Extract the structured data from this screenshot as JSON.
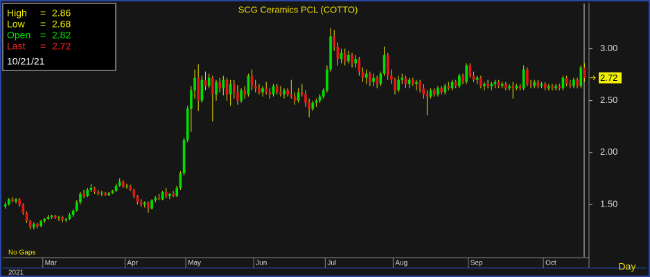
{
  "chart_data": {
    "type": "candlestick",
    "title": "SCG Ceramics PCL (COTTO)",
    "info": {
      "rows": [
        {
          "label": "High",
          "value": 2.86,
          "color": "#f0f000"
        },
        {
          "label": "Low",
          "value": 2.68,
          "color": "#f0f000"
        },
        {
          "label": "Open",
          "value": 2.82,
          "color": "#00e000"
        },
        {
          "label": "Last",
          "value": 2.72,
          "color": "#ff2020"
        }
      ],
      "date": "10/21/21"
    },
    "last_price": 2.72,
    "note": "No Gaps",
    "year_label": "2021",
    "x_label": "Day",
    "up_color": "#00e000",
    "down_color": "#e01818",
    "wick_color": "#e8e000",
    "ylim": [
      1.0,
      3.43
    ],
    "yticks": [
      {
        "value": 1.5,
        "label": "1.50"
      },
      {
        "value": 2.0,
        "label": "2.00"
      },
      {
        "value": 2.5,
        "label": "2.50"
      },
      {
        "value": 3.0,
        "label": "3.00"
      }
    ],
    "categories": [
      null,
      null,
      null,
      null,
      null,
      null,
      null,
      null,
      null,
      null,
      null,
      "Mar",
      null,
      null,
      null,
      null,
      null,
      null,
      null,
      null,
      null,
      null,
      null,
      null,
      null,
      null,
      null,
      null,
      null,
      null,
      null,
      null,
      null,
      null,
      "Apr",
      null,
      null,
      null,
      null,
      null,
      null,
      null,
      null,
      null,
      null,
      null,
      null,
      null,
      null,
      null,
      null,
      "May",
      null,
      null,
      null,
      null,
      null,
      null,
      null,
      null,
      null,
      null,
      null,
      null,
      null,
      null,
      null,
      null,
      null,
      null,
      "Jun",
      null,
      null,
      null,
      null,
      null,
      null,
      null,
      null,
      null,
      null,
      null,
      null,
      null,
      null,
      null,
      null,
      null,
      null,
      null,
      "Jul",
      null,
      null,
      null,
      null,
      null,
      null,
      null,
      null,
      null,
      null,
      null,
      null,
      null,
      null,
      null,
      null,
      null,
      null,
      "Aug",
      null,
      null,
      null,
      null,
      null,
      null,
      null,
      null,
      null,
      null,
      null,
      null,
      null,
      null,
      null,
      null,
      null,
      null,
      null,
      null,
      "Sep",
      null,
      null,
      null,
      null,
      null,
      null,
      null,
      null,
      null,
      null,
      null,
      null,
      null,
      null,
      null,
      null,
      null,
      null,
      null,
      null,
      "Oct",
      null,
      null,
      null,
      null,
      null,
      null,
      null,
      null,
      null,
      null,
      null
    ],
    "ohlc": [
      [
        1.48,
        1.52,
        1.46,
        1.5
      ],
      [
        1.5,
        1.56,
        1.49,
        1.55
      ],
      [
        1.55,
        1.57,
        1.52,
        1.53
      ],
      [
        1.53,
        1.56,
        1.51,
        1.55
      ],
      [
        1.55,
        1.56,
        1.48,
        1.5
      ],
      [
        1.5,
        1.51,
        1.4,
        1.42
      ],
      [
        1.42,
        1.43,
        1.32,
        1.34
      ],
      [
        1.34,
        1.35,
        1.26,
        1.28
      ],
      [
        1.28,
        1.33,
        1.26,
        1.31
      ],
      [
        1.31,
        1.32,
        1.27,
        1.29
      ],
      [
        1.29,
        1.35,
        1.28,
        1.34
      ],
      [
        1.34,
        1.37,
        1.32,
        1.36
      ],
      [
        1.36,
        1.4,
        1.35,
        1.38
      ],
      [
        1.38,
        1.4,
        1.36,
        1.39
      ],
      [
        1.39,
        1.4,
        1.36,
        1.37
      ],
      [
        1.37,
        1.39,
        1.34,
        1.38
      ],
      [
        1.38,
        1.39,
        1.33,
        1.35
      ],
      [
        1.35,
        1.37,
        1.33,
        1.36
      ],
      [
        1.36,
        1.42,
        1.35,
        1.4
      ],
      [
        1.4,
        1.45,
        1.38,
        1.44
      ],
      [
        1.44,
        1.54,
        1.43,
        1.52
      ],
      [
        1.52,
        1.62,
        1.5,
        1.6
      ],
      [
        1.6,
        1.64,
        1.56,
        1.58
      ],
      [
        1.58,
        1.66,
        1.57,
        1.64
      ],
      [
        1.64,
        1.7,
        1.62,
        1.66
      ],
      [
        1.66,
        1.67,
        1.6,
        1.62
      ],
      [
        1.62,
        1.64,
        1.59,
        1.6
      ],
      [
        1.6,
        1.63,
        1.58,
        1.61
      ],
      [
        1.61,
        1.62,
        1.58,
        1.59
      ],
      [
        1.59,
        1.62,
        1.58,
        1.61
      ],
      [
        1.61,
        1.64,
        1.6,
        1.63
      ],
      [
        1.63,
        1.7,
        1.62,
        1.68
      ],
      [
        1.68,
        1.75,
        1.67,
        1.72
      ],
      [
        1.72,
        1.73,
        1.66,
        1.67
      ],
      [
        1.67,
        1.7,
        1.65,
        1.68
      ],
      [
        1.68,
        1.69,
        1.63,
        1.64
      ],
      [
        1.64,
        1.65,
        1.56,
        1.58
      ],
      [
        1.58,
        1.59,
        1.5,
        1.52
      ],
      [
        1.52,
        1.55,
        1.48,
        1.5
      ],
      [
        1.5,
        1.53,
        1.47,
        1.52
      ],
      [
        1.52,
        1.53,
        1.42,
        1.46
      ],
      [
        1.46,
        1.55,
        1.45,
        1.54
      ],
      [
        1.54,
        1.58,
        1.52,
        1.56
      ],
      [
        1.56,
        1.6,
        1.54,
        1.55
      ],
      [
        1.55,
        1.63,
        1.54,
        1.62
      ],
      [
        1.62,
        1.66,
        1.56,
        1.58
      ],
      [
        1.58,
        1.61,
        1.55,
        1.6
      ],
      [
        1.6,
        1.63,
        1.57,
        1.58
      ],
      [
        1.58,
        1.68,
        1.57,
        1.66
      ],
      [
        1.66,
        1.82,
        1.64,
        1.8
      ],
      [
        1.8,
        2.14,
        1.78,
        2.12
      ],
      [
        2.12,
        2.45,
        2.1,
        2.42
      ],
      [
        2.42,
        2.64,
        2.2,
        2.6
      ],
      [
        2.6,
        2.8,
        2.52,
        2.72
      ],
      [
        2.72,
        2.85,
        2.4,
        2.5
      ],
      [
        2.5,
        2.74,
        2.48,
        2.7
      ],
      [
        2.7,
        2.78,
        2.6,
        2.64
      ],
      [
        2.64,
        2.76,
        2.62,
        2.72
      ],
      [
        2.72,
        2.74,
        2.3,
        2.56
      ],
      [
        2.56,
        2.7,
        2.5,
        2.68
      ],
      [
        2.68,
        2.72,
        2.58,
        2.62
      ],
      [
        2.62,
        2.74,
        2.55,
        2.7
      ],
      [
        2.7,
        2.72,
        2.5,
        2.56
      ],
      [
        2.56,
        2.7,
        2.45,
        2.66
      ],
      [
        2.66,
        2.7,
        2.52,
        2.58
      ],
      [
        2.58,
        2.65,
        2.46,
        2.5
      ],
      [
        2.5,
        2.62,
        2.48,
        2.6
      ],
      [
        2.6,
        2.64,
        2.52,
        2.56
      ],
      [
        2.56,
        2.76,
        2.54,
        2.74
      ],
      [
        2.74,
        2.8,
        2.6,
        2.64
      ],
      [
        2.64,
        2.7,
        2.58,
        2.62
      ],
      [
        2.62,
        2.66,
        2.56,
        2.58
      ],
      [
        2.58,
        2.64,
        2.54,
        2.62
      ],
      [
        2.62,
        2.68,
        2.56,
        2.58
      ],
      [
        2.58,
        2.62,
        2.52,
        2.56
      ],
      [
        2.56,
        2.66,
        2.54,
        2.64
      ],
      [
        2.64,
        2.66,
        2.56,
        2.58
      ],
      [
        2.58,
        2.64,
        2.54,
        2.56
      ],
      [
        2.56,
        2.62,
        2.52,
        2.6
      ],
      [
        2.6,
        2.62,
        2.54,
        2.56
      ],
      [
        2.56,
        2.7,
        2.52,
        2.54
      ],
      [
        2.54,
        2.58,
        2.46,
        2.5
      ],
      [
        2.5,
        2.62,
        2.48,
        2.58
      ],
      [
        2.58,
        2.66,
        2.54,
        2.56
      ],
      [
        2.56,
        2.6,
        2.44,
        2.48
      ],
      [
        2.48,
        2.52,
        2.34,
        2.42
      ],
      [
        2.42,
        2.5,
        2.4,
        2.48
      ],
      [
        2.48,
        2.52,
        2.44,
        2.5
      ],
      [
        2.5,
        2.56,
        2.48,
        2.54
      ],
      [
        2.54,
        2.62,
        2.52,
        2.6
      ],
      [
        2.6,
        2.84,
        2.58,
        2.8
      ],
      [
        2.8,
        3.2,
        2.78,
        3.12
      ],
      [
        3.12,
        3.18,
        2.98,
        3.02
      ],
      [
        3.02,
        3.06,
        2.84,
        2.9
      ],
      [
        2.9,
        3.0,
        2.86,
        2.96
      ],
      [
        2.96,
        3.0,
        2.84,
        2.88
      ],
      [
        2.88,
        2.98,
        2.86,
        2.94
      ],
      [
        2.94,
        2.96,
        2.82,
        2.86
      ],
      [
        2.86,
        2.94,
        2.82,
        2.9
      ],
      [
        2.9,
        2.92,
        2.74,
        2.78
      ],
      [
        2.78,
        2.82,
        2.68,
        2.72
      ],
      [
        2.72,
        2.8,
        2.66,
        2.76
      ],
      [
        2.76,
        2.78,
        2.64,
        2.68
      ],
      [
        2.68,
        2.76,
        2.64,
        2.72
      ],
      [
        2.72,
        2.74,
        2.62,
        2.66
      ],
      [
        2.66,
        2.78,
        2.64,
        2.76
      ],
      [
        2.76,
        3.02,
        2.74,
        2.94
      ],
      [
        2.94,
        2.96,
        2.7,
        2.74
      ],
      [
        2.74,
        2.8,
        2.66,
        2.7
      ],
      [
        2.7,
        2.72,
        2.56,
        2.6
      ],
      [
        2.6,
        2.74,
        2.58,
        2.7
      ],
      [
        2.7,
        2.76,
        2.66,
        2.72
      ],
      [
        2.72,
        2.74,
        2.62,
        2.66
      ],
      [
        2.66,
        2.72,
        2.62,
        2.7
      ],
      [
        2.7,
        2.72,
        2.64,
        2.66
      ],
      [
        2.66,
        2.7,
        2.6,
        2.68
      ],
      [
        2.68,
        2.7,
        2.58,
        2.62
      ],
      [
        2.62,
        2.66,
        2.52,
        2.56
      ],
      [
        2.56,
        2.6,
        2.36,
        2.54
      ],
      [
        2.54,
        2.62,
        2.52,
        2.6
      ],
      [
        2.6,
        2.62,
        2.54,
        2.56
      ],
      [
        2.56,
        2.64,
        2.54,
        2.62
      ],
      [
        2.62,
        2.64,
        2.56,
        2.58
      ],
      [
        2.58,
        2.66,
        2.56,
        2.64
      ],
      [
        2.64,
        2.68,
        2.6,
        2.62
      ],
      [
        2.62,
        2.7,
        2.6,
        2.68
      ],
      [
        2.68,
        2.7,
        2.62,
        2.64
      ],
      [
        2.64,
        2.76,
        2.62,
        2.74
      ],
      [
        2.74,
        2.76,
        2.66,
        2.68
      ],
      [
        2.68,
        2.86,
        2.66,
        2.84
      ],
      [
        2.84,
        2.86,
        2.72,
        2.74
      ],
      [
        2.74,
        2.78,
        2.68,
        2.7
      ],
      [
        2.7,
        2.74,
        2.66,
        2.72
      ],
      [
        2.72,
        2.74,
        2.62,
        2.64
      ],
      [
        2.64,
        2.68,
        2.6,
        2.66
      ],
      [
        2.66,
        2.7,
        2.62,
        2.64
      ],
      [
        2.64,
        2.68,
        2.6,
        2.66
      ],
      [
        2.66,
        2.7,
        2.62,
        2.68
      ],
      [
        2.68,
        2.7,
        2.62,
        2.64
      ],
      [
        2.64,
        2.68,
        2.62,
        2.66
      ],
      [
        2.66,
        2.68,
        2.6,
        2.62
      ],
      [
        2.62,
        2.66,
        2.6,
        2.64
      ],
      [
        2.64,
        2.68,
        2.52,
        2.62
      ],
      [
        2.62,
        2.66,
        2.6,
        2.64
      ],
      [
        2.64,
        2.66,
        2.6,
        2.62
      ],
      [
        2.62,
        2.84,
        2.6,
        2.8
      ],
      [
        2.8,
        2.82,
        2.64,
        2.66
      ],
      [
        2.66,
        2.7,
        2.62,
        2.64
      ],
      [
        2.64,
        2.7,
        2.62,
        2.68
      ],
      [
        2.68,
        2.7,
        2.62,
        2.64
      ],
      [
        2.64,
        2.68,
        2.62,
        2.66
      ],
      [
        2.66,
        2.68,
        2.6,
        2.62
      ],
      [
        2.62,
        2.66,
        2.6,
        2.64
      ],
      [
        2.64,
        2.66,
        2.6,
        2.62
      ],
      [
        2.62,
        2.66,
        2.6,
        2.64
      ],
      [
        2.64,
        2.66,
        2.6,
        2.62
      ],
      [
        2.62,
        2.74,
        2.6,
        2.72
      ],
      [
        2.72,
        2.74,
        2.64,
        2.66
      ],
      [
        2.66,
        2.7,
        2.62,
        2.64
      ],
      [
        2.64,
        2.72,
        2.62,
        2.7
      ],
      [
        2.7,
        2.72,
        2.62,
        2.64
      ],
      [
        2.64,
        2.84,
        2.62,
        2.82
      ],
      [
        2.82,
        2.86,
        2.68,
        2.72
      ]
    ]
  }
}
